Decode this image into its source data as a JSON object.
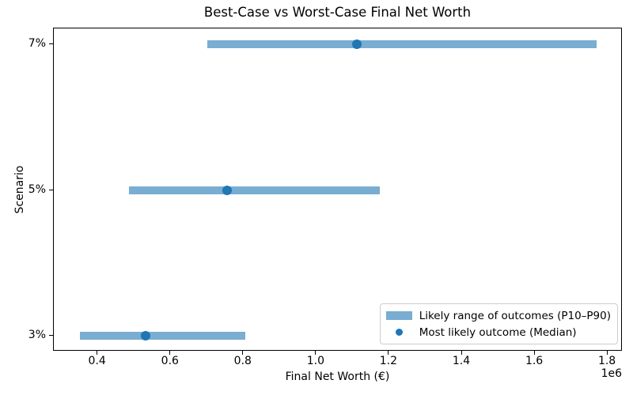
{
  "chart_data": {
    "type": "bar",
    "orientation": "horizontal",
    "title": "Best-Case vs Worst-Case Final Net Worth",
    "xlabel": "Final Net Worth (€)",
    "ylabel": "Scenario",
    "categories": [
      "3%",
      "5%",
      "7%"
    ],
    "rows_top_to_bottom": [
      "7%",
      "5%",
      "3%"
    ],
    "series": [
      {
        "name": "Likely range of outcomes (P10–P90)",
        "type": "range_bar",
        "color": "#79add2",
        "values": {
          "3%": [
            350000,
            805000
          ],
          "5%": [
            485000,
            1175000
          ],
          "7%": [
            700000,
            1770000
          ]
        }
      },
      {
        "name": "Most likely outcome (Median)",
        "type": "point",
        "color": "#1f77b4",
        "values": {
          "3%": 530000,
          "5%": 755000,
          "7%": 1110000
        }
      }
    ],
    "xlim": [
      279000,
      1841000
    ],
    "x_ticks": [
      400000,
      600000,
      800000,
      1000000,
      1200000,
      1400000,
      1600000,
      1800000
    ],
    "x_tick_labels": [
      "0.4",
      "0.6",
      "0.8",
      "1.0",
      "1.2",
      "1.4",
      "1.6",
      "1.8"
    ],
    "x_offset_text": "1e6",
    "legend_position": "lower right",
    "grid": false
  }
}
